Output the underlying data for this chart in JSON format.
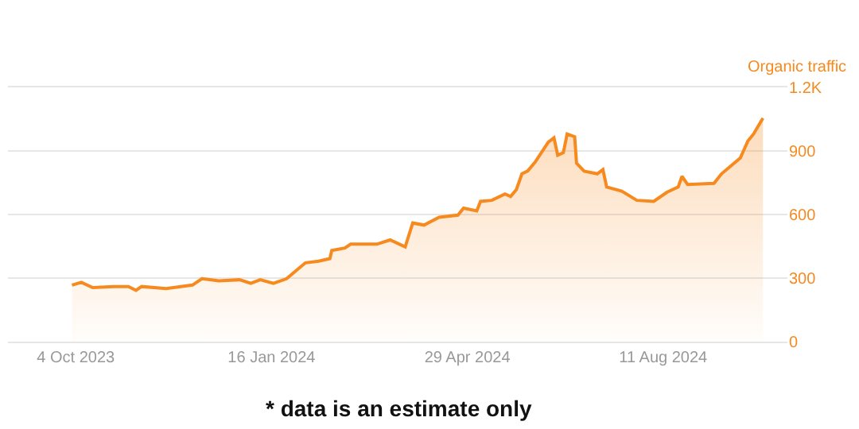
{
  "chart_data": {
    "type": "area",
    "ylabel": "Organic traffic",
    "annotations": [
      "* data is an estimate only"
    ],
    "x": [
      "2023-10-02",
      "2023-10-07",
      "2023-10-13",
      "2023-10-24",
      "2023-11-01",
      "2023-11-05",
      "2023-11-08",
      "2023-11-21",
      "2023-12-05",
      "2023-12-10",
      "2023-12-19",
      "2023-12-30",
      "2024-01-05",
      "2024-01-10",
      "2024-01-17",
      "2024-01-24",
      "2024-01-30",
      "2024-02-03",
      "2024-02-10",
      "2024-02-16",
      "2024-02-17",
      "2024-02-24",
      "2024-02-27",
      "2024-03-12",
      "2024-03-19",
      "2024-03-27",
      "2024-03-31",
      "2024-04-06",
      "2024-04-14",
      "2024-04-24",
      "2024-04-27",
      "2024-05-04",
      "2024-05-06",
      "2024-05-12",
      "2024-05-19",
      "2024-05-22",
      "2024-05-25",
      "2024-05-28",
      "2024-05-31",
      "2024-06-04",
      "2024-06-11",
      "2024-06-14",
      "2024-06-16",
      "2024-06-19",
      "2024-06-21",
      "2024-06-25",
      "2024-06-26",
      "2024-06-30",
      "2024-07-07",
      "2024-07-10",
      "2024-07-12",
      "2024-07-20",
      "2024-07-28",
      "2024-08-06",
      "2024-08-13",
      "2024-08-19",
      "2024-08-21",
      "2024-08-24",
      "2024-09-07",
      "2024-09-11",
      "2024-09-21",
      "2024-09-25",
      "2024-09-28",
      "2024-10-03"
    ],
    "series": [
      {
        "color": "#f68a1e",
        "values": [
          267,
          280,
          255,
          260,
          260,
          242,
          260,
          250,
          267,
          297,
          287,
          292,
          275,
          292,
          275,
          297,
          342,
          372,
          380,
          392,
          430,
          442,
          460,
          460,
          480,
          447,
          560,
          550,
          587,
          597,
          630,
          617,
          662,
          667,
          697,
          685,
          717,
          792,
          805,
          847,
          942,
          962,
          880,
          892,
          980,
          967,
          842,
          805,
          792,
          812,
          730,
          710,
          667,
          662,
          705,
          730,
          780,
          742,
          747,
          792,
          867,
          947,
          980,
          1055
        ]
      }
    ],
    "xlim": [
      "2023-08-29",
      "2024-10-16"
    ],
    "xticks": [
      {
        "value": "2023-10-04",
        "label": "4 Oct 2023"
      },
      {
        "value": "2024-01-16",
        "label": "16 Jan 2024"
      },
      {
        "value": "2024-04-29",
        "label": "29 Apr 2024"
      },
      {
        "value": "2024-08-11",
        "label": "11 Aug 2024"
      }
    ],
    "ylim": [
      0,
      1200
    ],
    "yticks": [
      0,
      300,
      600,
      900,
      {
        "value": 1200,
        "label": "1.2K"
      }
    ],
    "grid": "y",
    "marker": "none",
    "line_style": "solid"
  }
}
